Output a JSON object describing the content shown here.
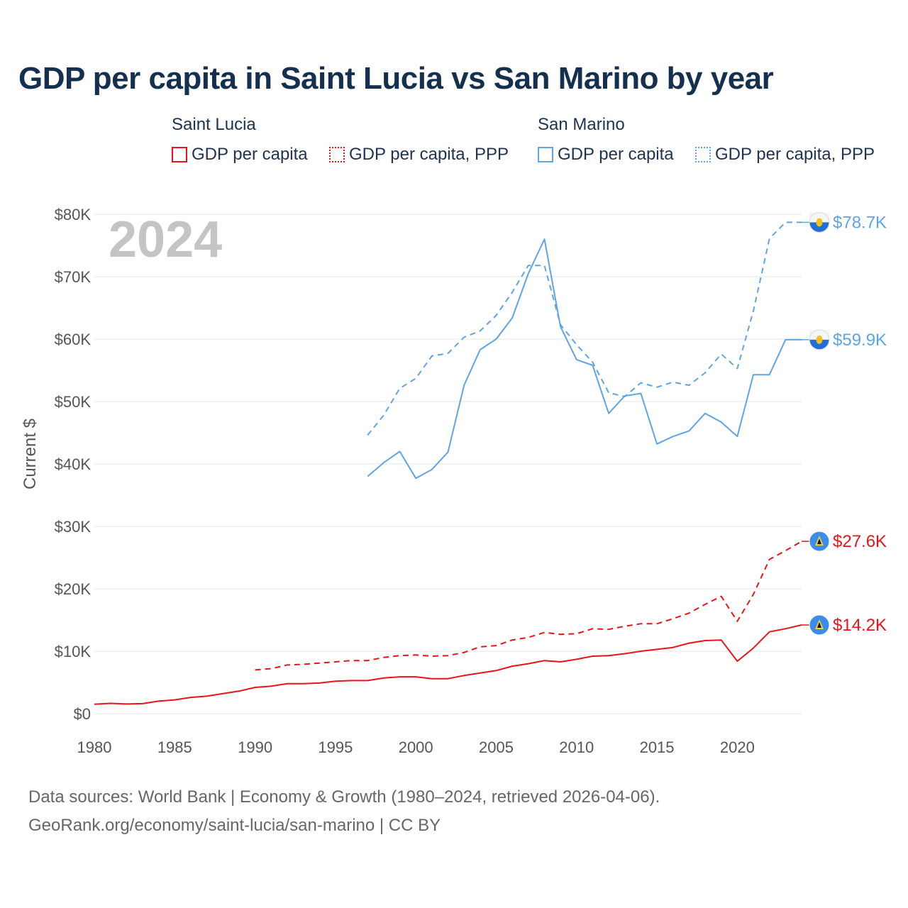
{
  "title": "GDP per capita in Saint Lucia vs San Marino by year",
  "legend": {
    "saint_lucia": {
      "heading": "Saint Lucia",
      "gdp": "GDP per capita",
      "ppp": "GDP per capita, PPP"
    },
    "san_marino": {
      "heading": "San Marino",
      "gdp": "GDP per capita",
      "ppp": "GDP per capita, PPP"
    }
  },
  "year_watermark": "2024",
  "footer": {
    "line1": "Data sources: World Bank | Economy & Growth (1980–2024, retrieved 2026-04-06).",
    "line2": "GeoRank.org/economy/saint-lucia/san-marino | CC BY"
  },
  "colors": {
    "saint_lucia": "#e8141b",
    "san_marino": "#5fa4e3",
    "title": "#15304f",
    "grid": "#e6e6e6"
  },
  "chart_data": {
    "type": "line",
    "title": "GDP per capita in Saint Lucia vs San Marino by year",
    "xlabel": "",
    "ylabel": "Current $",
    "xlim": [
      1980,
      2024
    ],
    "ylim": [
      0,
      80000
    ],
    "x_ticks": [
      1980,
      1985,
      1990,
      1995,
      2000,
      2005,
      2010,
      2015,
      2020
    ],
    "x_tick_labels": [
      "1980",
      "1985",
      "1990",
      "1995",
      "2000",
      "2005",
      "2010",
      "2015",
      "2020"
    ],
    "y_ticks": [
      0,
      10000,
      20000,
      30000,
      40000,
      50000,
      60000,
      70000,
      80000
    ],
    "y_tick_labels": [
      "$0",
      "$10K",
      "$20K",
      "$30K",
      "$40K",
      "$50K",
      "$60K",
      "$70K",
      "$80K"
    ],
    "series": [
      {
        "name": "Saint Lucia GDP per capita",
        "country": "Saint Lucia",
        "style": "solid",
        "color": "#e8141b",
        "end_label": "$14.2K",
        "x": [
          1980,
          1981,
          1982,
          1983,
          1984,
          1985,
          1986,
          1987,
          1988,
          1989,
          1990,
          1991,
          1992,
          1993,
          1994,
          1995,
          1996,
          1997,
          1998,
          1999,
          2000,
          2001,
          2002,
          2003,
          2004,
          2005,
          2006,
          2007,
          2008,
          2009,
          2010,
          2011,
          2012,
          2013,
          2014,
          2015,
          2016,
          2017,
          2018,
          2019,
          2020,
          2021,
          2022,
          2023,
          2024
        ],
        "values": [
          1500,
          1650,
          1550,
          1600,
          2000,
          2200,
          2600,
          2800,
          3200,
          3600,
          4200,
          4400,
          4800,
          4800,
          4900,
          5200,
          5300,
          5300,
          5700,
          5900,
          5900,
          5600,
          5600,
          6100,
          6500,
          6900,
          7600,
          8000,
          8500,
          8300,
          8700,
          9200,
          9300,
          9600,
          10000,
          10300,
          10600,
          11300,
          11700,
          11800,
          8400,
          10500,
          13100,
          13600,
          14200
        ]
      },
      {
        "name": "Saint Lucia GDP per capita, PPP",
        "country": "Saint Lucia",
        "style": "dashed",
        "color": "#e8141b",
        "end_label": "$27.6K",
        "x": [
          1990,
          1991,
          1992,
          1993,
          1994,
          1995,
          1996,
          1997,
          1998,
          1999,
          2000,
          2001,
          2002,
          2003,
          2004,
          2005,
          2006,
          2007,
          2008,
          2009,
          2010,
          2011,
          2012,
          2013,
          2014,
          2015,
          2016,
          2017,
          2018,
          2019,
          2020,
          2021,
          2022,
          2023,
          2024
        ],
        "values": [
          7000,
          7200,
          7800,
          7900,
          8100,
          8300,
          8500,
          8500,
          9000,
          9300,
          9400,
          9200,
          9300,
          9800,
          10700,
          10900,
          11800,
          12200,
          13000,
          12700,
          12800,
          13600,
          13500,
          14000,
          14400,
          14400,
          15200,
          16100,
          17500,
          18800,
          14800,
          19100,
          24700,
          26100,
          27600
        ]
      },
      {
        "name": "San Marino GDP per capita",
        "country": "San Marino",
        "style": "solid",
        "color": "#5fa4e3",
        "end_label": "$59.9K",
        "x": [
          1997,
          1998,
          1999,
          2000,
          2001,
          2002,
          2003,
          2004,
          2005,
          2006,
          2007,
          2008,
          2009,
          2010,
          2011,
          2012,
          2013,
          2014,
          2015,
          2016,
          2017,
          2018,
          2019,
          2020,
          2021,
          2022,
          2023,
          2024
        ],
        "values": [
          38000,
          40200,
          42000,
          37700,
          39100,
          41900,
          52600,
          58300,
          60000,
          63400,
          70500,
          76000,
          62000,
          56700,
          55800,
          48100,
          50900,
          51300,
          43200,
          44400,
          45300,
          48100,
          46700,
          44400,
          54300,
          54300,
          59900,
          59900
        ]
      },
      {
        "name": "San Marino GDP per capita, PPP",
        "country": "San Marino",
        "style": "dashed",
        "color": "#5fa4e3",
        "end_label": "$78.7K",
        "x": [
          1997,
          1998,
          1999,
          2000,
          2001,
          2002,
          2003,
          2004,
          2005,
          2006,
          2007,
          2008,
          2009,
          2010,
          2011,
          2012,
          2013,
          2014,
          2015,
          2016,
          2017,
          2018,
          2019,
          2020,
          2021,
          2022,
          2023,
          2024
        ],
        "values": [
          44600,
          47800,
          52100,
          53700,
          57300,
          57700,
          60300,
          61300,
          63800,
          67500,
          71800,
          71800,
          62300,
          59100,
          56300,
          51400,
          50800,
          53000,
          52300,
          53100,
          52600,
          54600,
          57600,
          55300,
          64500,
          76100,
          78700,
          78700
        ]
      }
    ]
  }
}
